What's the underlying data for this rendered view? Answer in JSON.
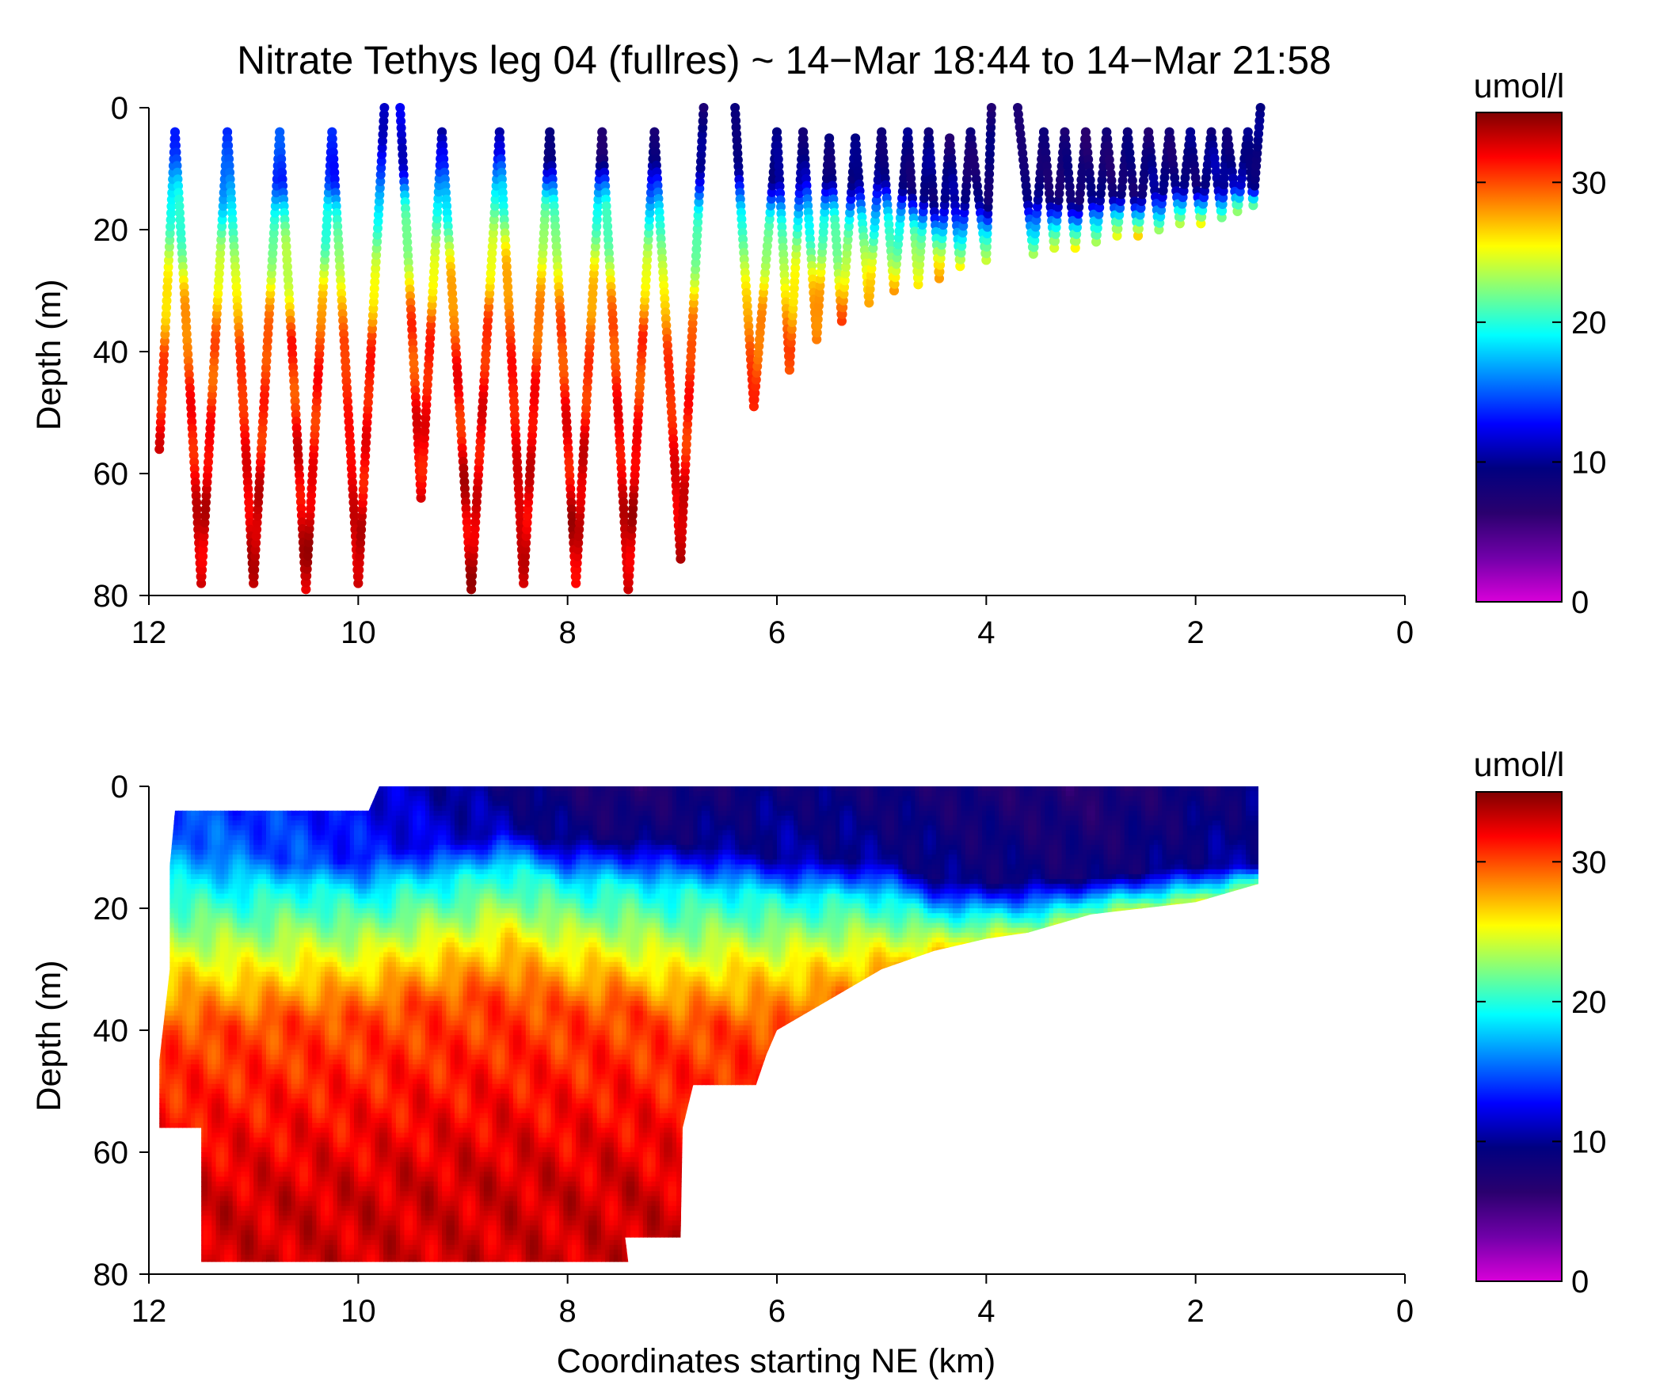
{
  "title": "Nitrate Tethys leg 04 (fullres) ~ 14−Mar 18:44 to 14−Mar 21:58",
  "colorbar": {
    "label": "umol/l",
    "range": [
      0,
      35
    ],
    "ticks": [
      "0",
      "10",
      "20",
      "30"
    ],
    "tick_values": [
      0,
      10,
      20,
      30
    ],
    "colormap": [
      "#d900d9",
      "#7000a8",
      "#2a006e",
      "#000080",
      "#0000ff",
      "#0080ff",
      "#00ffff",
      "#80ff80",
      "#ffff00",
      "#ff8000",
      "#ff0000",
      "#800000"
    ]
  },
  "chart_data": [
    {
      "type": "scatter",
      "name": "top",
      "title": "Nitrate Tethys leg 04 (fullres) ~ 14−Mar 18:44 to 14−Mar 21:58",
      "xlabel": "",
      "ylabel": "Depth (m)",
      "xlim": [
        12,
        0
      ],
      "ylim": [
        80,
        0
      ],
      "x_reversed": true,
      "y_reversed": true,
      "xticks": [
        "12",
        "10",
        "8",
        "6",
        "4",
        "2",
        "0"
      ],
      "yticks": [
        "0",
        "20",
        "40",
        "60",
        "80"
      ],
      "grid": false,
      "color_variable": "nitrate (umol/l)",
      "profiles": [
        [
          11.9,
          56
        ],
        [
          11.75,
          4
        ],
        [
          11.5,
          78
        ],
        [
          11.25,
          4
        ],
        [
          11.0,
          78
        ],
        [
          10.75,
          4
        ],
        [
          10.5,
          79
        ],
        [
          10.25,
          4
        ],
        [
          10.0,
          78
        ],
        [
          9.75,
          0
        ],
        [
          9.6,
          0
        ],
        [
          9.4,
          64
        ],
        [
          9.2,
          4
        ],
        [
          8.92,
          79
        ],
        [
          8.65,
          4
        ],
        [
          8.42,
          78
        ],
        [
          8.17,
          4
        ],
        [
          7.92,
          78
        ],
        [
          7.67,
          4
        ],
        [
          7.42,
          79
        ],
        [
          7.17,
          4
        ],
        [
          6.92,
          74
        ],
        [
          6.7,
          0
        ],
        [
          6.4,
          0
        ],
        [
          6.35,
          15
        ],
        [
          6.22,
          49
        ],
        [
          6.0,
          4
        ],
        [
          5.88,
          43
        ],
        [
          5.75,
          4
        ],
        [
          5.62,
          38
        ],
        [
          5.5,
          5
        ],
        [
          5.38,
          35
        ],
        [
          5.25,
          5
        ],
        [
          5.12,
          32
        ],
        [
          5.0,
          4
        ],
        [
          4.88,
          30
        ],
        [
          4.75,
          4
        ],
        [
          4.65,
          29
        ],
        [
          4.55,
          4
        ],
        [
          4.45,
          28
        ],
        [
          4.35,
          5
        ],
        [
          4.25,
          26
        ],
        [
          4.15,
          4
        ],
        [
          4.0,
          25
        ],
        [
          3.95,
          0
        ],
        [
          3.7,
          0
        ],
        [
          3.6,
          16
        ],
        [
          3.55,
          24
        ],
        [
          3.45,
          4
        ],
        [
          3.35,
          23
        ],
        [
          3.25,
          4
        ],
        [
          3.15,
          23
        ],
        [
          3.05,
          4
        ],
        [
          2.95,
          22
        ],
        [
          2.85,
          4
        ],
        [
          2.75,
          21
        ],
        [
          2.65,
          4
        ],
        [
          2.55,
          21
        ],
        [
          2.45,
          4
        ],
        [
          2.35,
          20
        ],
        [
          2.25,
          4
        ],
        [
          2.15,
          19
        ],
        [
          2.05,
          4
        ],
        [
          1.95,
          19
        ],
        [
          1.85,
          4
        ],
        [
          1.75,
          18
        ],
        [
          1.7,
          4
        ],
        [
          1.6,
          17
        ],
        [
          1.5,
          4
        ],
        [
          1.45,
          16
        ],
        [
          1.38,
          0
        ]
      ]
    },
    {
      "type": "heatmap",
      "name": "bottom",
      "xlabel": "Coordinates starting NE (km)",
      "ylabel": "Depth (m)",
      "xlim": [
        12,
        0
      ],
      "ylim": [
        80,
        0
      ],
      "x_reversed": true,
      "y_reversed": true,
      "xticks": [
        "12",
        "10",
        "8",
        "6",
        "4",
        "2",
        "0"
      ],
      "yticks": [
        "0",
        "20",
        "40",
        "60",
        "80"
      ],
      "grid": false,
      "color_variable": "nitrate (umol/l)",
      "data_boundary": [
        [
          11.75,
          4
        ],
        [
          9.9,
          4
        ],
        [
          9.8,
          0
        ],
        [
          1.4,
          0
        ],
        [
          1.4,
          16
        ],
        [
          2.0,
          19
        ],
        [
          3.0,
          21
        ],
        [
          3.6,
          24
        ],
        [
          4.0,
          25
        ],
        [
          4.5,
          27
        ],
        [
          5.0,
          30
        ],
        [
          5.3,
          33
        ],
        [
          5.6,
          36
        ],
        [
          5.8,
          38
        ],
        [
          6.0,
          40
        ],
        [
          6.1,
          44
        ],
        [
          6.2,
          49
        ],
        [
          6.8,
          49
        ],
        [
          6.9,
          56
        ],
        [
          6.92,
          74
        ],
        [
          7.45,
          74
        ],
        [
          7.42,
          78
        ],
        [
          11.5,
          78
        ],
        [
          11.5,
          56
        ],
        [
          11.9,
          56
        ],
        [
          11.9,
          45
        ],
        [
          11.8,
          30
        ],
        [
          11.8,
          13
        ],
        [
          11.75,
          4
        ]
      ],
      "nitracline": [
        [
          11.8,
          9,
          16,
          30,
          40
        ],
        [
          11.0,
          11,
          17,
          31,
          39
        ],
        [
          10.5,
          13,
          16,
          30,
          38
        ],
        [
          10.0,
          12,
          18,
          30,
          38
        ],
        [
          9.5,
          10,
          16,
          28,
          36
        ],
        [
          9.0,
          9,
          15,
          27,
          35
        ],
        [
          8.6,
          7,
          13,
          25,
          34
        ],
        [
          8.0,
          9,
          16,
          28,
          37
        ],
        [
          7.5,
          8,
          16,
          29,
          36
        ],
        [
          7.0,
          9,
          17,
          31,
          39
        ],
        [
          6.5,
          10,
          17,
          30,
          39
        ],
        [
          6.0,
          12,
          18,
          30,
          40
        ],
        [
          5.5,
          12,
          18,
          29,
          38
        ],
        [
          5.0,
          12,
          18,
          28,
          35
        ],
        [
          4.5,
          15,
          21,
          27,
          31
        ],
        [
          4.0,
          16,
          21,
          26,
          30
        ],
        [
          3.5,
          15,
          21,
          25,
          28
        ],
        [
          3.0,
          15,
          19,
          23,
          26
        ],
        [
          2.5,
          14,
          18,
          21,
          24
        ],
        [
          2.0,
          13,
          17,
          20,
          23
        ],
        [
          1.4,
          13,
          15,
          18,
          20
        ]
      ],
      "surface_nitrate": [
        [
          11.8,
          14
        ],
        [
          10.5,
          13
        ],
        [
          9.5,
          11
        ],
        [
          8.5,
          9
        ],
        [
          7.5,
          7
        ],
        [
          6.0,
          9
        ],
        [
          4.5,
          8
        ],
        [
          3.0,
          7
        ],
        [
          1.4,
          9
        ]
      ]
    }
  ]
}
